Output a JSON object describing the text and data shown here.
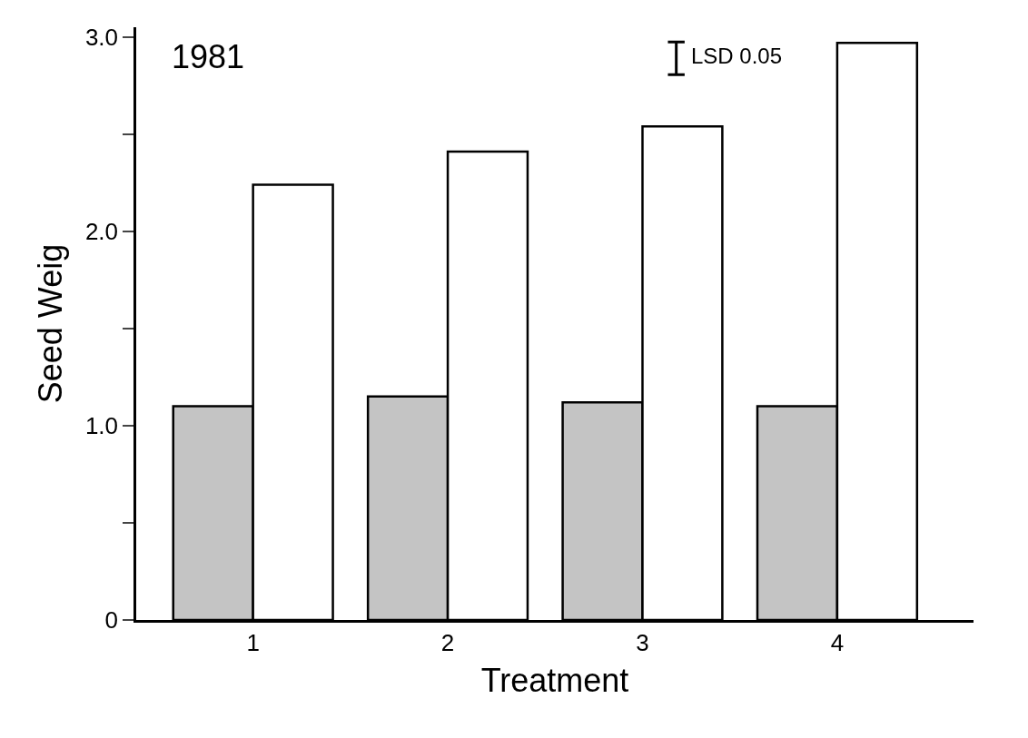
{
  "chart_data": {
    "type": "bar",
    "ylabel": "Seed Weig",
    "xlabel": "Treatment",
    "categories": [
      "1",
      "2",
      "3",
      "4"
    ],
    "series": [
      {
        "color": "#c4c4c4",
        "values": [
          1.1,
          1.15,
          1.12,
          1.1
        ]
      },
      {
        "color": "#ffffff",
        "values": [
          2.24,
          2.41,
          2.54,
          2.97
        ]
      }
    ],
    "ylim": [
      0,
      3.05
    ],
    "yticks": [
      0,
      {
        "value": 0.5,
        "label": null
      },
      {
        "value": 1.0,
        "label": "1.0"
      },
      {
        "value": 1.5,
        "label": null
      },
      {
        "value": 2.0,
        "label": "2.0"
      },
      {
        "value": 2.5,
        "label": null
      },
      {
        "value": 3.0,
        "label": "3.0"
      }
    ],
    "annotations": [
      "1981",
      "LSD 0.05"
    ]
  }
}
